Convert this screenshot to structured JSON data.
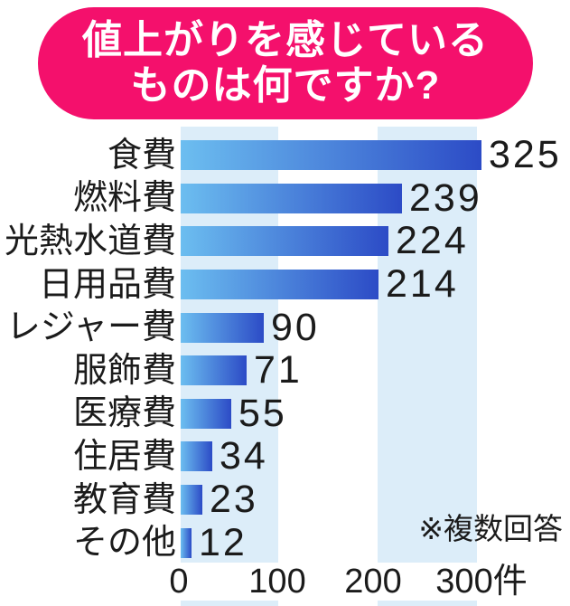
{
  "title": {
    "line1": "値上がりを感じている",
    "line2": "ものは何ですか?"
  },
  "colors": {
    "title_bg": "#F4106C",
    "title_text": "#FFFFFF",
    "band_bg": "#DCEDF9",
    "bar_gradient_start": "#6CBEF0",
    "bar_gradient_end": "#2C4BC6",
    "text": "#1B1B1B"
  },
  "chart_data": {
    "type": "bar",
    "orientation": "horizontal",
    "title": "値上がりを感じているものは何ですか?",
    "categories": [
      "食費",
      "燃料費",
      "光熱水道費",
      "日用品費",
      "レジャー費",
      "服飾費",
      "医療費",
      "住居費",
      "教育費",
      "その他"
    ],
    "values": [
      325,
      239,
      224,
      214,
      90,
      71,
      55,
      34,
      23,
      12
    ],
    "unit": "件",
    "x_ticks": [
      0,
      100,
      200,
      300
    ],
    "x_tick_labels": [
      "0",
      "100",
      "200",
      "300件"
    ],
    "xlim": [
      0,
      325
    ],
    "note": "※複数回答",
    "legend": false,
    "background_bands": [
      [
        0,
        100
      ],
      [
        200,
        300
      ]
    ],
    "value_labels_shown": true
  }
}
